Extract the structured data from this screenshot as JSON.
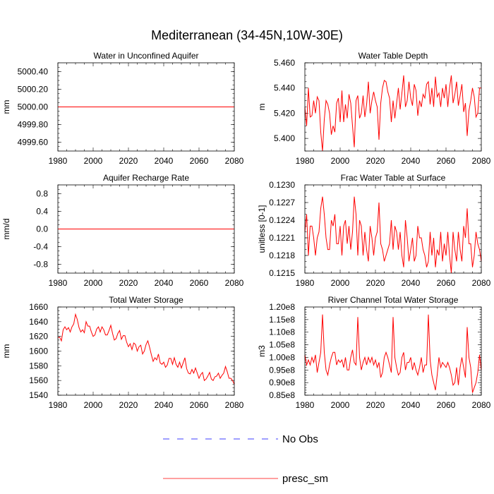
{
  "figure": {
    "title": "Mediterranean (34-45N,10W-30E)",
    "legend": [
      {
        "label": "No Obs",
        "color": "#0000ff",
        "dash": true
      },
      {
        "label": "presc_sm",
        "color": "#ff0000",
        "dash": false
      }
    ]
  },
  "chart_data": [
    {
      "type": "line",
      "title": "Water in Unconfined Aquifer",
      "ylabel": "mm",
      "xlim": [
        1980,
        2080
      ],
      "ylim": [
        4999.5,
        5000.5
      ],
      "x_ticks": [
        "1980",
        "2000",
        "2020",
        "2040",
        "2060",
        "2080"
      ],
      "y_ticks": [
        {
          "v": 4999.6,
          "label": "4999.60"
        },
        {
          "v": 4999.8,
          "label": "4999.80"
        },
        {
          "v": 5000.0,
          "label": "5000.00"
        },
        {
          "v": 5000.2,
          "label": "5000.20"
        },
        {
          "v": 5000.4,
          "label": "5000.40"
        }
      ],
      "y_minor": 0.05,
      "series": [
        {
          "name": "presc_sm",
          "color": "#ff0000",
          "x_start": 1980,
          "x_step": 1,
          "constant": 5000.0,
          "count": 101
        }
      ]
    },
    {
      "type": "line",
      "title": "Water Table Depth",
      "ylabel": "m",
      "xlim": [
        1980,
        2080
      ],
      "ylim": [
        5.39,
        5.46
      ],
      "x_ticks": [
        "1980",
        "2000",
        "2020",
        "2040",
        "2060",
        "2080"
      ],
      "y_ticks": [
        {
          "v": 5.4,
          "label": "5.400"
        },
        {
          "v": 5.42,
          "label": "5.420"
        },
        {
          "v": 5.44,
          "label": "5.440"
        },
        {
          "v": 5.46,
          "label": "5.460"
        }
      ],
      "y_minor": 0.005,
      "series": [
        {
          "name": "presc_sm",
          "color": "#ff0000",
          "x_start": 1980,
          "x_step": 1,
          "values": [
            5.425,
            5.41,
            5.44,
            5.417,
            5.418,
            5.43,
            5.42,
            5.433,
            5.43,
            5.405,
            5.39,
            5.415,
            5.43,
            5.427,
            5.42,
            5.403,
            5.41,
            5.405,
            5.428,
            5.432,
            5.413,
            5.438,
            5.413,
            5.427,
            5.416,
            5.435,
            5.428,
            5.41,
            5.393,
            5.43,
            5.434,
            5.416,
            5.42,
            5.434,
            5.417,
            5.427,
            5.445,
            5.42,
            5.43,
            5.437,
            5.43,
            5.425,
            5.399,
            5.428,
            5.44,
            5.446,
            5.445,
            5.437,
            5.432,
            5.413,
            5.43,
            5.416,
            5.428,
            5.44,
            5.423,
            5.436,
            5.45,
            5.425,
            5.43,
            5.445,
            5.432,
            5.426,
            5.443,
            5.438,
            5.418,
            5.43,
            5.425,
            5.435,
            5.432,
            5.443,
            5.445,
            5.427,
            5.44,
            5.425,
            5.449,
            5.433,
            5.436,
            5.425,
            5.44,
            5.432,
            5.443,
            5.425,
            5.44,
            5.45,
            5.428,
            5.435,
            5.445,
            5.426,
            5.434,
            5.443,
            5.421,
            5.428,
            5.402,
            5.422,
            5.43,
            5.44,
            5.433,
            5.417,
            5.42,
            5.44,
            5.44
          ]
        }
      ]
    },
    {
      "type": "line",
      "title": "Aquifer Recharge Rate",
      "ylabel": "mm/d",
      "xlim": [
        1980,
        2080
      ],
      "ylim": [
        -1.0,
        1.0
      ],
      "x_ticks": [
        "1980",
        "2000",
        "2020",
        "2040",
        "2060",
        "2080"
      ],
      "y_ticks": [
        {
          "v": -0.8,
          "label": "-0.8"
        },
        {
          "v": -0.4,
          "label": "-0.4"
        },
        {
          "v": 0.0,
          "label": "0.0"
        },
        {
          "v": 0.4,
          "label": "0.4"
        },
        {
          "v": 0.8,
          "label": "0.8"
        }
      ],
      "y_minor": 0.1,
      "series": [
        {
          "name": "presc_sm",
          "color": "#ff0000",
          "x_start": 1980,
          "x_step": 1,
          "constant": 0.0,
          "count": 101
        }
      ]
    },
    {
      "type": "line",
      "title": "Frac Water Table at Surface",
      "ylabel": "unitless [0-1]",
      "xlim": [
        1980,
        2080
      ],
      "ylim": [
        0.1215,
        0.123
      ],
      "x_ticks": [
        "1980",
        "2000",
        "2020",
        "2040",
        "2060",
        "2080"
      ],
      "y_ticks": [
        {
          "v": 0.1215,
          "label": "0.1215"
        },
        {
          "v": 0.1218,
          "label": "0.1218"
        },
        {
          "v": 0.1221,
          "label": "0.1221"
        },
        {
          "v": 0.1224,
          "label": "0.1224"
        },
        {
          "v": 0.1227,
          "label": "0.1227"
        },
        {
          "v": 0.123,
          "label": "0.1230"
        }
      ],
      "y_minor": 0.0001,
      "series": [
        {
          "name": "presc_sm",
          "color": "#ff0000",
          "x_start": 1980,
          "x_step": 1,
          "values": [
            0.1222,
            0.1225,
            0.1218,
            0.1223,
            0.1223,
            0.1221,
            0.1218,
            0.1221,
            0.1222,
            0.1226,
            0.1228,
            0.1225,
            0.1221,
            0.1219,
            0.1219,
            0.1224,
            0.1223,
            0.1225,
            0.122,
            0.122,
            0.1223,
            0.1218,
            0.1223,
            0.1224,
            0.122,
            0.1223,
            0.1219,
            0.1222,
            0.1228,
            0.1225,
            0.1218,
            0.1224,
            0.1223,
            0.1218,
            0.1222,
            0.1219,
            0.1217,
            0.1223,
            0.1221,
            0.1218,
            0.1221,
            0.1222,
            0.1227,
            0.122,
            0.1219,
            0.1217,
            0.1218,
            0.1219,
            0.122,
            0.1224,
            0.1219,
            0.1223,
            0.1222,
            0.1219,
            0.1222,
            0.1218,
            0.1216,
            0.1224,
            0.1221,
            0.1217,
            0.1219,
            0.1221,
            0.1217,
            0.1218,
            0.1223,
            0.1221,
            0.1221,
            0.1219,
            0.1218,
            0.1216,
            0.1217,
            0.1222,
            0.1218,
            0.1221,
            0.1216,
            0.1219,
            0.1218,
            0.1222,
            0.1217,
            0.122,
            0.1218,
            0.1222,
            0.1218,
            0.1215,
            0.1222,
            0.1219,
            0.1217,
            0.1222,
            0.1219,
            0.1217,
            0.1223,
            0.1221,
            0.1226,
            0.122,
            0.122,
            0.1216,
            0.1218,
            0.1222,
            0.122,
            0.1219,
            0.1217
          ]
        }
      ]
    },
    {
      "type": "line",
      "title": "Total Water Storage",
      "ylabel": "mm",
      "xlim": [
        1980,
        2080
      ],
      "ylim": [
        1540,
        1660
      ],
      "x_ticks": [
        "1980",
        "2000",
        "2020",
        "2040",
        "2060",
        "2080"
      ],
      "y_ticks": [
        {
          "v": 1540,
          "label": "1540"
        },
        {
          "v": 1560,
          "label": "1560"
        },
        {
          "v": 1580,
          "label": "1580"
        },
        {
          "v": 1600,
          "label": "1600"
        },
        {
          "v": 1620,
          "label": "1620"
        },
        {
          "v": 1640,
          "label": "1640"
        },
        {
          "v": 1660,
          "label": "1660"
        }
      ],
      "y_minor": 5,
      "series": [
        {
          "name": "presc_sm",
          "color": "#ff0000",
          "x_start": 1980,
          "x_step": 1,
          "values": [
            1618,
            1619,
            1614,
            1629,
            1633,
            1629,
            1632,
            1626,
            1633,
            1637,
            1650,
            1643,
            1632,
            1626,
            1629,
            1625,
            1640,
            1634,
            1634,
            1626,
            1620,
            1622,
            1630,
            1633,
            1626,
            1633,
            1629,
            1622,
            1622,
            1628,
            1635,
            1624,
            1615,
            1617,
            1624,
            1628,
            1616,
            1621,
            1621,
            1612,
            1606,
            1610,
            1602,
            1611,
            1609,
            1600,
            1606,
            1608,
            1596,
            1600,
            1609,
            1614,
            1605,
            1595,
            1586,
            1591,
            1588,
            1596,
            1584,
            1582,
            1585,
            1578,
            1581,
            1590,
            1590,
            1582,
            1591,
            1582,
            1578,
            1585,
            1577,
            1584,
            1591,
            1576,
            1570,
            1569,
            1575,
            1570,
            1577,
            1570,
            1563,
            1568,
            1571,
            1560,
            1562,
            1566,
            1571,
            1562,
            1560,
            1565,
            1566,
            1570,
            1563,
            1567,
            1570,
            1579,
            1572,
            1563,
            1563,
            1560,
            1555
          ]
        }
      ]
    },
    {
      "type": "line",
      "title": "River Channel Total Water Storage",
      "ylabel": "m3",
      "xlim": [
        1980,
        2080
      ],
      "ylim": [
        85000000.0,
        120000000.0
      ],
      "x_ticks": [
        "1980",
        "2000",
        "2020",
        "2040",
        "2060",
        "2080"
      ],
      "y_ticks": [
        {
          "v": 85000000.0,
          "label": "0.85e8"
        },
        {
          "v": 90000000.0,
          "label": "0.90e8"
        },
        {
          "v": 95000000.0,
          "label": "0.95e8"
        },
        {
          "v": 100000000.0,
          "label": "1.00e8"
        },
        {
          "v": 105000000.0,
          "label": "1.05e8"
        },
        {
          "v": 110000000.0,
          "label": "1.10e8"
        },
        {
          "v": 115000000.0,
          "label": "1.15e8"
        },
        {
          "v": 120000000.0,
          "label": "1.20e8"
        }
      ],
      "y_minor": 1000000.0,
      "series": [
        {
          "name": "presc_sm",
          "color": "#ff0000",
          "x_start": 1980,
          "x_step": 1,
          "values": [
            101000000.0,
            97000000.0,
            99000000.0,
            97000000.0,
            100000000.0,
            98000000.0,
            101000000.0,
            94000000.0,
            98000000.0,
            102000000.0,
            117000000.0,
            102000000.0,
            95000000.0,
            93000000.0,
            97000000.0,
            100000000.0,
            102000000.0,
            102000000.0,
            97000000.0,
            99000000.0,
            98000000.0,
            99000000.0,
            96000000.0,
            100000000.0,
            95000000.0,
            95000000.0,
            100000000.0,
            103000000.0,
            98000000.0,
            97000000.0,
            116000000.0,
            100000000.0,
            95000000.0,
            98000000.0,
            100000000.0,
            97000000.0,
            100000000.0,
            98000000.0,
            100000000.0,
            97000000.0,
            99000000.0,
            96000000.0,
            98000000.0,
            92000000.0,
            94000000.0,
            100000000.0,
            102000000.0,
            100000000.0,
            97000000.0,
            94000000.0,
            116000000.0,
            100000000.0,
            96000000.0,
            93000000.0,
            94000000.0,
            100000000.0,
            102000000.0,
            95000000.0,
            98000000.0,
            98000000.0,
            100000000.0,
            95000000.0,
            98000000.0,
            95000000.0,
            93000000.0,
            96000000.0,
            100000000.0,
            94000000.0,
            97000000.0,
            97000000.0,
            117000000.0,
            99000000.0,
            93000000.0,
            90000000.0,
            87000000.0,
            93000000.0,
            100000000.0,
            96000000.0,
            98000000.0,
            97000000.0,
            96000000.0,
            98000000.0,
            96000000.0,
            93000000.0,
            89000000.0,
            90000000.0,
            96000000.0,
            89000000.0,
            96000000.0,
            100000000.0,
            96000000.0,
            92000000.0,
            112000000.0,
            100000000.0,
            96000000.0,
            86000000.0,
            88000000.0,
            90000000.0,
            94000000.0,
            101000000.0,
            95000000.0
          ]
        }
      ]
    }
  ]
}
